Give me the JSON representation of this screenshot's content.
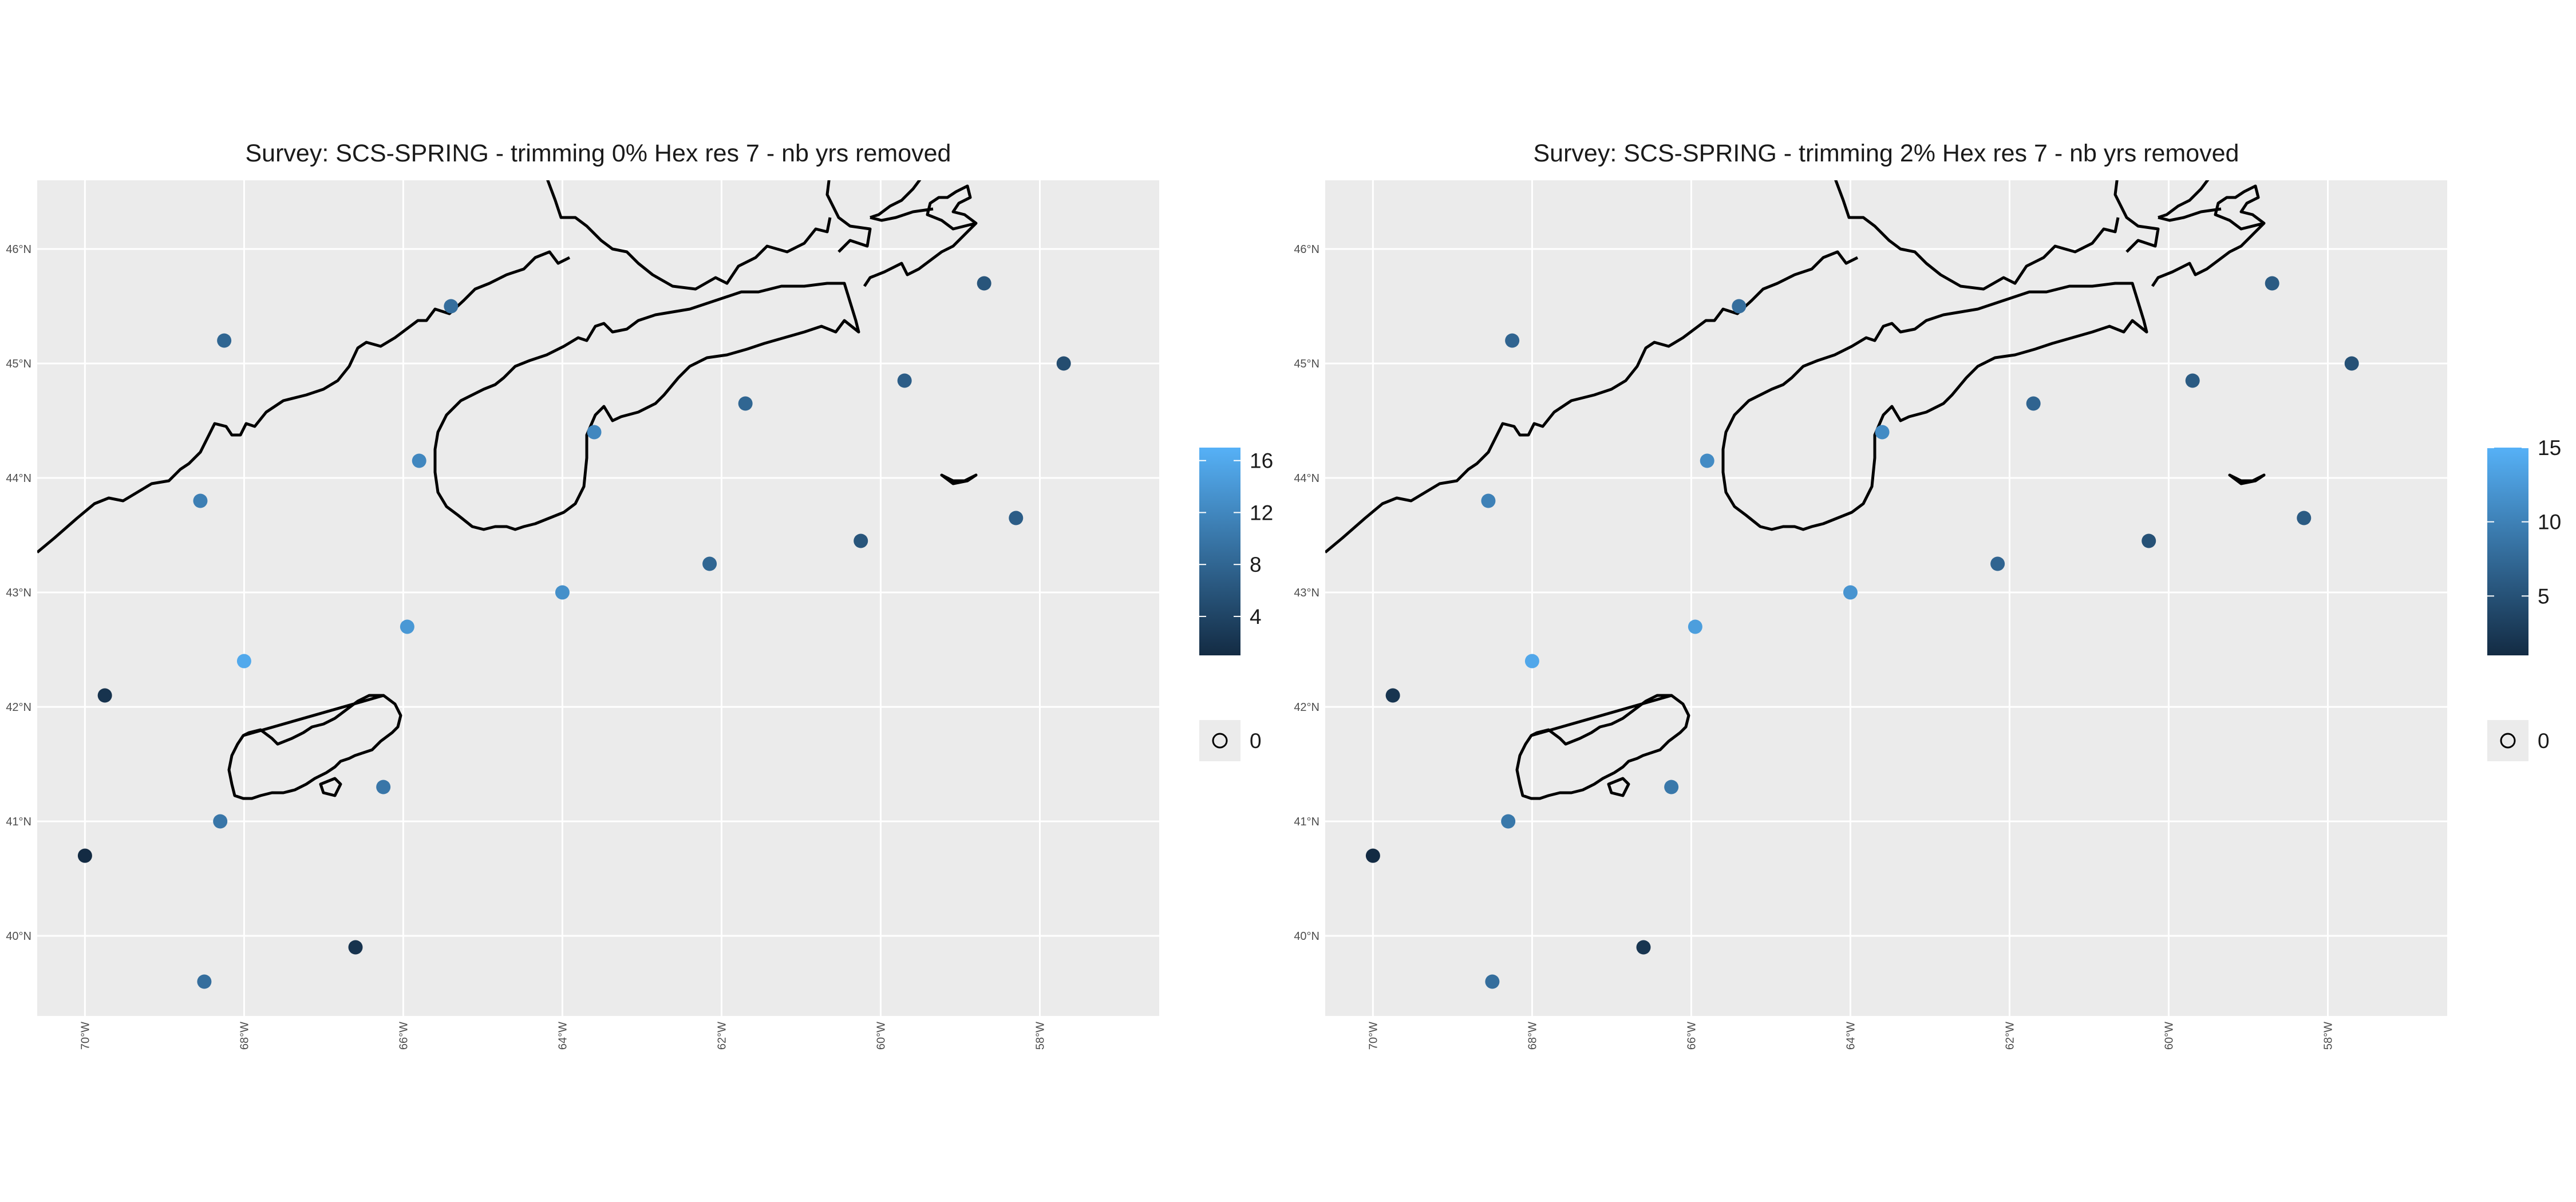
{
  "figure": {
    "panels": [
      {
        "title": "Survey: SCS-SPRING - trimming 0% Hex res 7 - nb yrs removed",
        "legend": {
          "ticks": [
            16,
            12,
            8,
            4
          ],
          "range": [
            1,
            17
          ],
          "zero_label": "0"
        },
        "points": [
          {
            "lon": -58.7,
            "lat": 45.7,
            "value": 6
          },
          {
            "lon": -68.25,
            "lat": 45.2,
            "value": 8
          },
          {
            "lon": -65.4,
            "lat": 45.5,
            "value": 9
          },
          {
            "lon": -57.7,
            "lat": 45.0,
            "value": 5
          },
          {
            "lon": -59.7,
            "lat": 44.85,
            "value": 7
          },
          {
            "lon": -61.7,
            "lat": 44.65,
            "value": 8
          },
          {
            "lon": -63.6,
            "lat": 44.4,
            "value": 12
          },
          {
            "lon": -65.8,
            "lat": 44.15,
            "value": 12
          },
          {
            "lon": -68.55,
            "lat": 43.8,
            "value": 11
          },
          {
            "lon": -58.3,
            "lat": 43.65,
            "value": 7
          },
          {
            "lon": -60.25,
            "lat": 43.45,
            "value": 6
          },
          {
            "lon": -62.15,
            "lat": 43.25,
            "value": 8
          },
          {
            "lon": -64.0,
            "lat": 43.0,
            "value": 13
          },
          {
            "lon": -65.95,
            "lat": 42.7,
            "value": 14
          },
          {
            "lon": -68.0,
            "lat": 42.4,
            "value": 16
          },
          {
            "lon": -69.75,
            "lat": 42.1,
            "value": 2
          },
          {
            "lon": -66.25,
            "lat": 41.3,
            "value": 10
          },
          {
            "lon": -68.3,
            "lat": 41.0,
            "value": 10
          },
          {
            "lon": -70.0,
            "lat": 40.7,
            "value": 1
          },
          {
            "lon": -66.6,
            "lat": 39.9,
            "value": 2
          },
          {
            "lon": -68.5,
            "lat": 39.6,
            "value": 9
          }
        ]
      },
      {
        "title": "Survey: SCS-SPRING - trimming 2% Hex res 7 - nb yrs removed",
        "legend": {
          "ticks": [
            15,
            10,
            5
          ],
          "range": [
            1,
            15
          ],
          "zero_label": "0"
        },
        "points": [
          {
            "lon": -58.7,
            "lat": 45.7,
            "value": 6
          },
          {
            "lon": -68.25,
            "lat": 45.2,
            "value": 7
          },
          {
            "lon": -65.4,
            "lat": 45.5,
            "value": 8
          },
          {
            "lon": -57.7,
            "lat": 45.0,
            "value": 5
          },
          {
            "lon": -59.7,
            "lat": 44.85,
            "value": 6
          },
          {
            "lon": -61.7,
            "lat": 44.65,
            "value": 7
          },
          {
            "lon": -63.6,
            "lat": 44.4,
            "value": 11
          },
          {
            "lon": -65.8,
            "lat": 44.15,
            "value": 11
          },
          {
            "lon": -68.55,
            "lat": 43.8,
            "value": 10
          },
          {
            "lon": -58.3,
            "lat": 43.65,
            "value": 6
          },
          {
            "lon": -60.25,
            "lat": 43.45,
            "value": 5
          },
          {
            "lon": -62.15,
            "lat": 43.25,
            "value": 7
          },
          {
            "lon": -64.0,
            "lat": 43.0,
            "value": 12
          },
          {
            "lon": -65.95,
            "lat": 42.7,
            "value": 13
          },
          {
            "lon": -68.0,
            "lat": 42.4,
            "value": 14
          },
          {
            "lon": -69.75,
            "lat": 42.1,
            "value": 2
          },
          {
            "lon": -66.25,
            "lat": 41.3,
            "value": 9
          },
          {
            "lon": -68.3,
            "lat": 41.0,
            "value": 9
          },
          {
            "lon": -70.0,
            "lat": 40.7,
            "value": 1
          },
          {
            "lon": -66.6,
            "lat": 39.9,
            "value": 2
          },
          {
            "lon": -68.5,
            "lat": 39.6,
            "value": 8
          }
        ]
      }
    ],
    "x_ticks": [
      {
        "lon": -70,
        "label": "70°W"
      },
      {
        "lon": -68,
        "label": "68°W"
      },
      {
        "lon": -66,
        "label": "66°W"
      },
      {
        "lon": -64,
        "label": "64°W"
      },
      {
        "lon": -62,
        "label": "62°W"
      },
      {
        "lon": -60,
        "label": "60°W"
      },
      {
        "lon": -58,
        "label": "58°W"
      }
    ],
    "y_ticks": [
      {
        "lat": 46,
        "label": "46°N"
      },
      {
        "lat": 45,
        "label": "45°N"
      },
      {
        "lat": 44,
        "label": "44°N"
      },
      {
        "lat": 43,
        "label": "43°N"
      },
      {
        "lat": 42,
        "label": "42°N"
      },
      {
        "lat": 41,
        "label": "41°N"
      },
      {
        "lat": 40,
        "label": "40°N"
      }
    ],
    "colors": {
      "panel_background": "#ebebeb",
      "gridline": "#ffffff",
      "coastline": "#000000",
      "scale_low": "#132B43",
      "scale_high": "#56B1F7"
    }
  }
}
